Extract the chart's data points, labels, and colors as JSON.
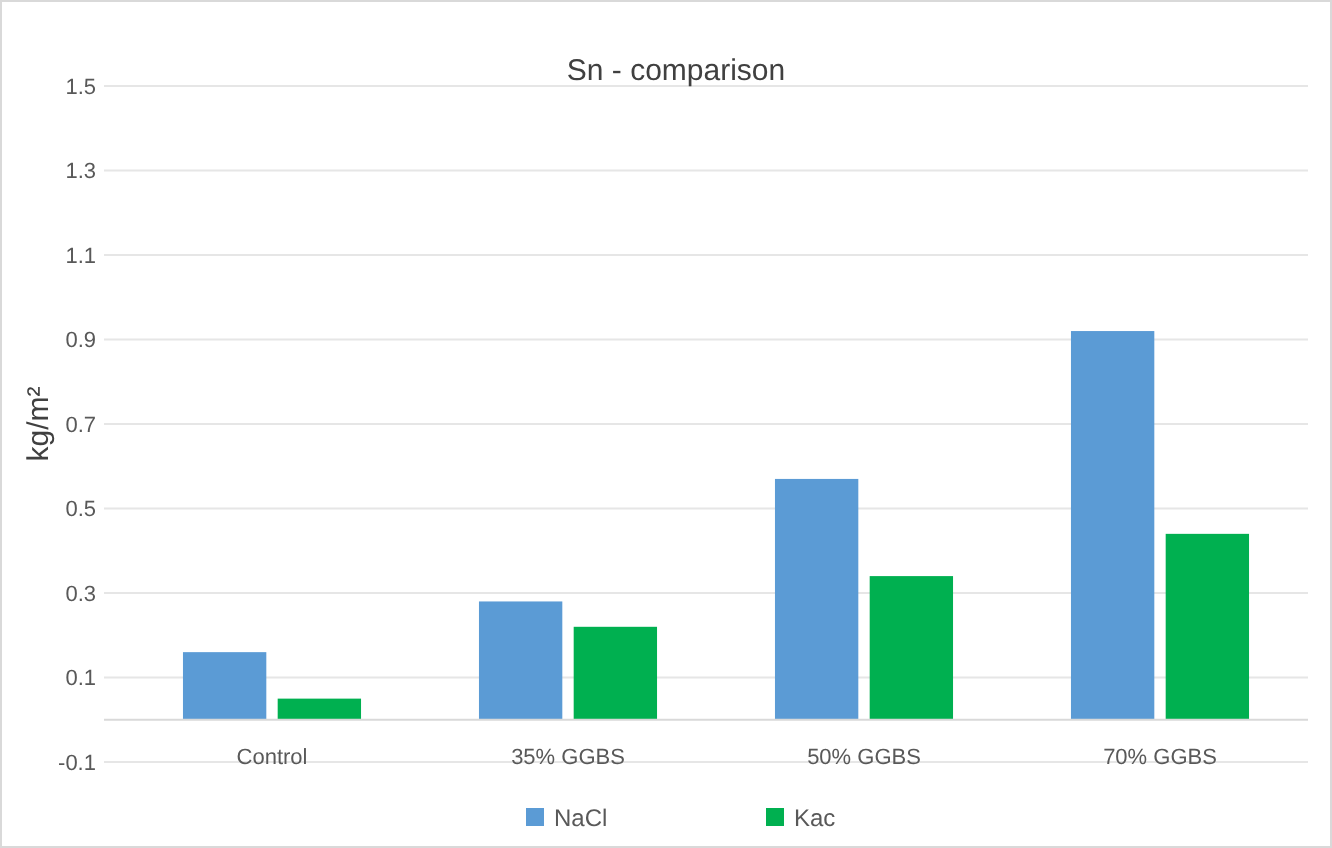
{
  "chart_data": {
    "type": "bar",
    "title": "Sn - comparison",
    "ylabel": "kg/m²",
    "categories": [
      "Control",
      "35% GGBS",
      "50% GGBS",
      "70% GGBS"
    ],
    "series": [
      {
        "name": "NaCl",
        "color": "#5b9bd5",
        "values": [
          0.16,
          0.28,
          0.57,
          0.92
        ]
      },
      {
        "name": "Kac",
        "color": "#00b050",
        "values": [
          0.05,
          0.22,
          0.34,
          0.44
        ]
      }
    ],
    "ylim": [
      -0.1,
      1.5
    ],
    "yticks": [
      -0.1,
      0.1,
      0.3,
      0.5,
      0.7,
      0.9,
      1.1,
      1.3,
      1.5
    ],
    "grid": "y",
    "legend": "bottom"
  }
}
